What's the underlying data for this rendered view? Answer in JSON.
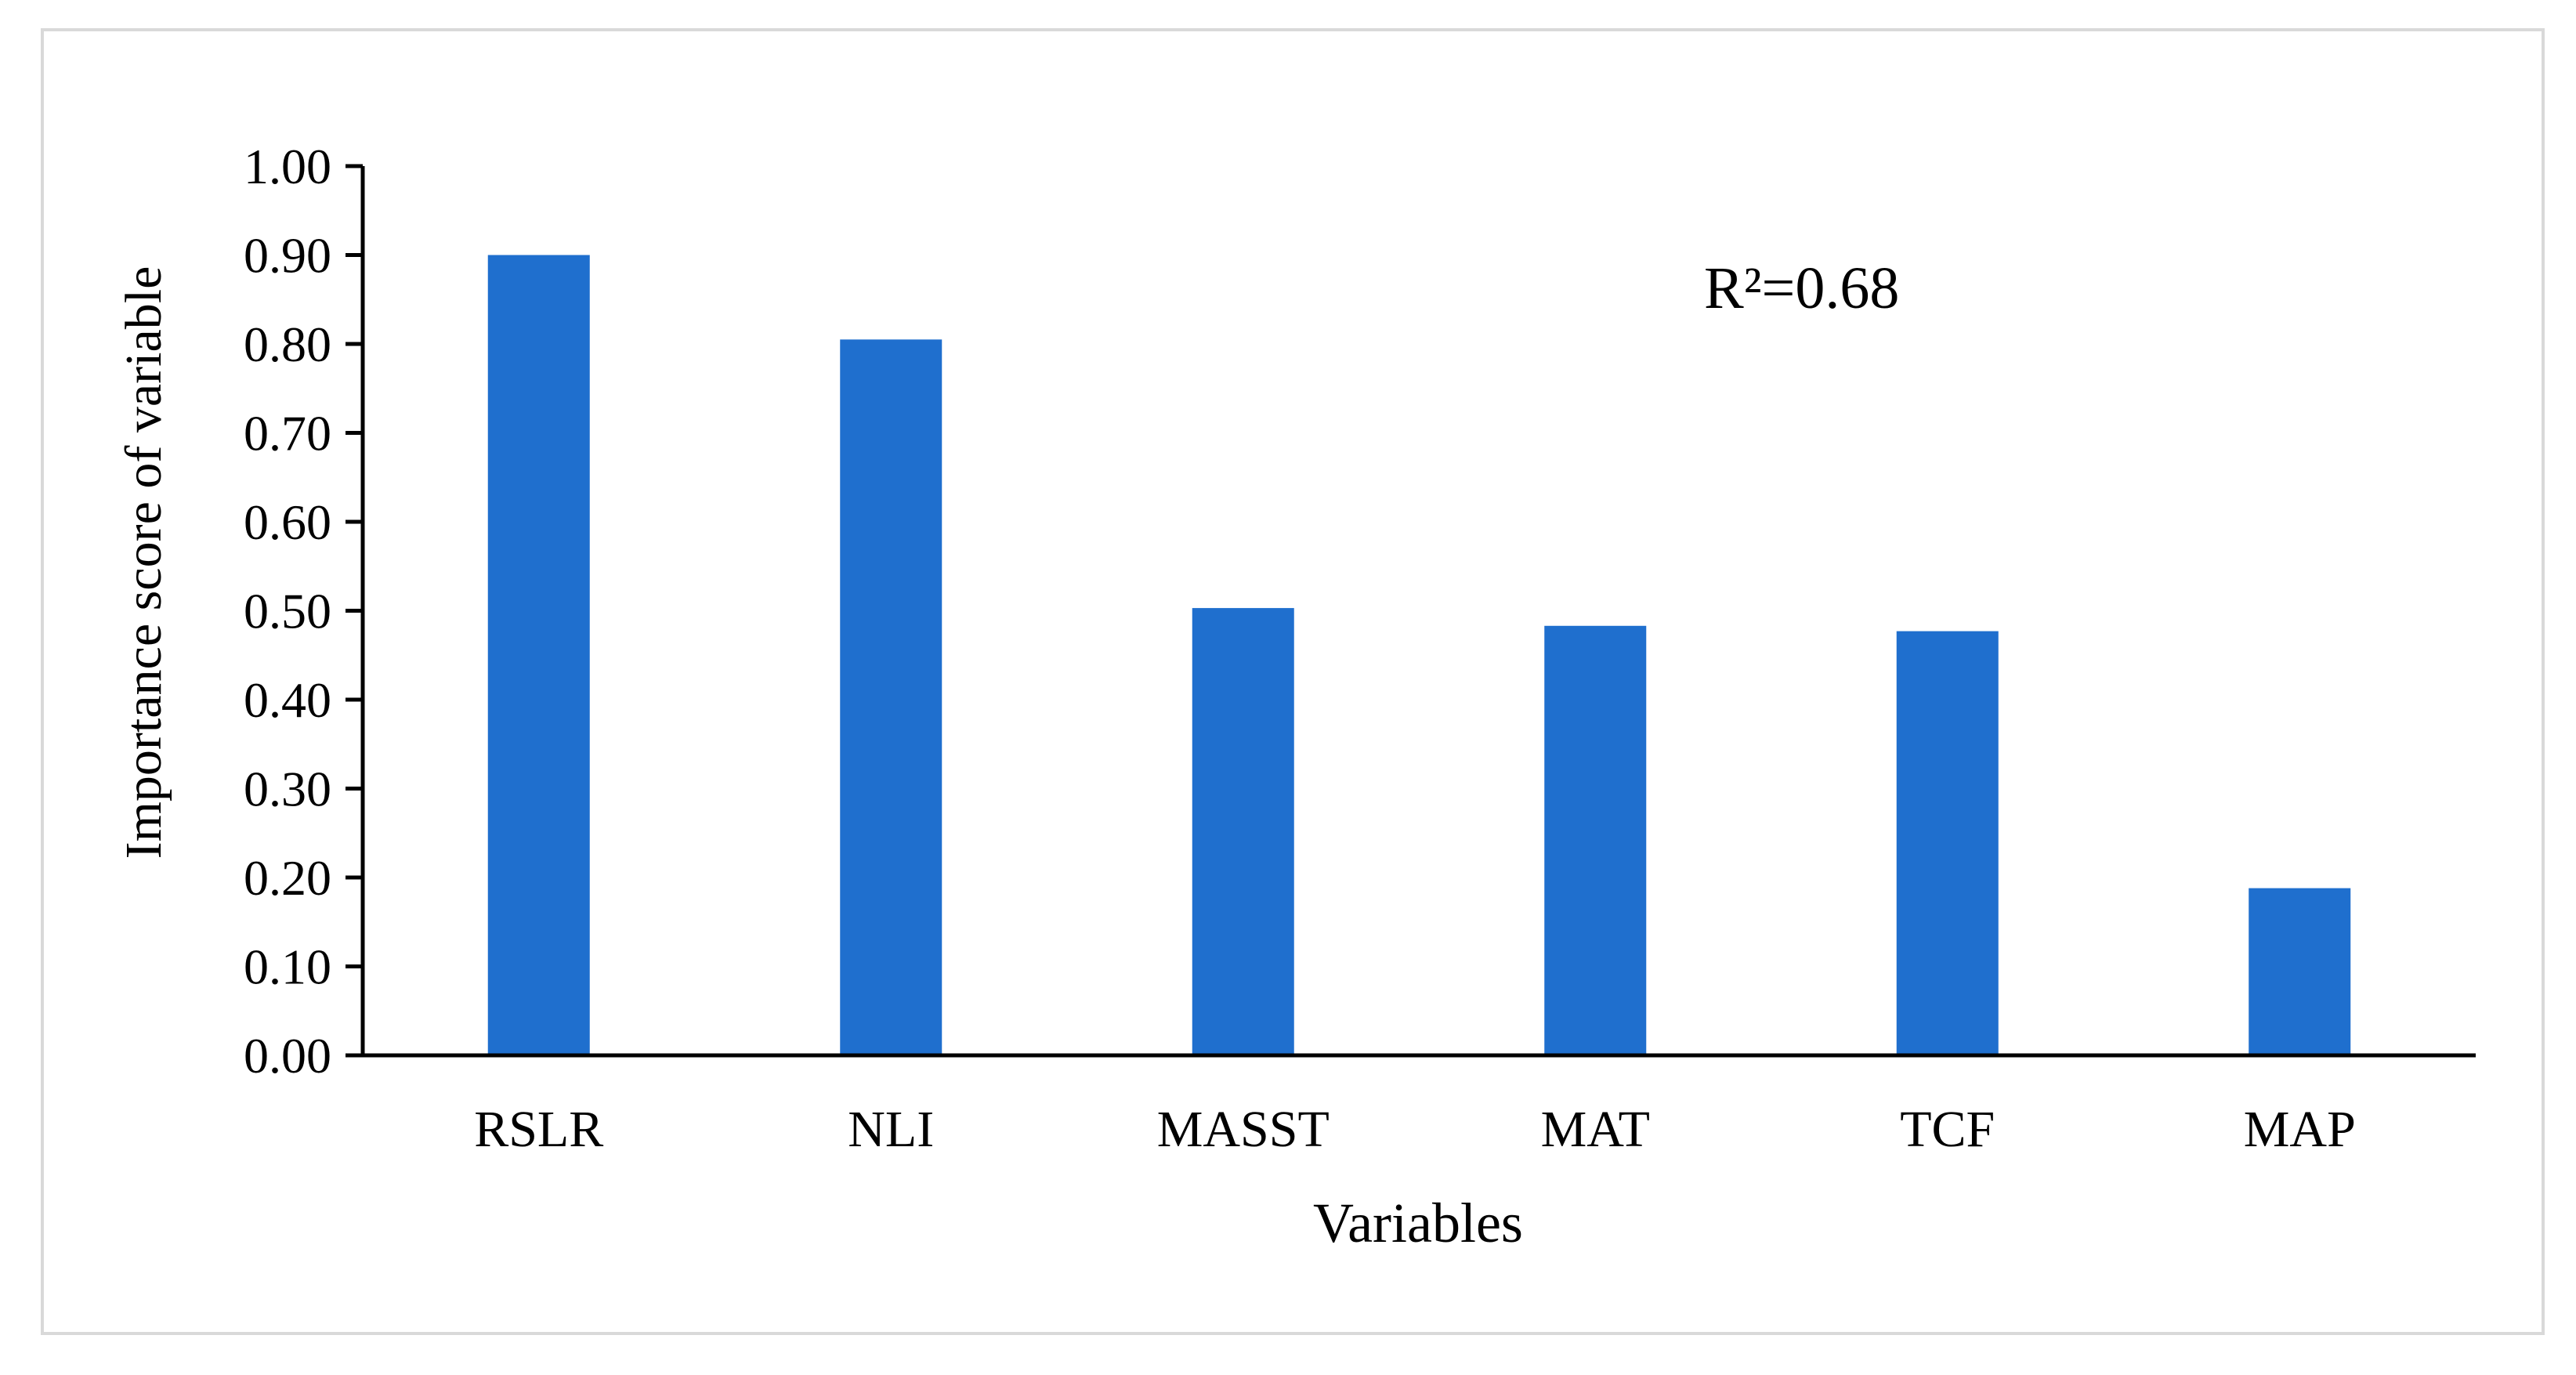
{
  "chart_data": {
    "type": "bar",
    "categories": [
      "RSLR",
      "NLI",
      "MASST",
      "MAT",
      "TCF",
      "MAP"
    ],
    "values": [
      0.9,
      0.805,
      0.503,
      0.483,
      0.477,
      0.188
    ],
    "xlabel": "Variables",
    "ylabel": "Importance score of variable",
    "ylim": [
      0,
      1
    ],
    "yticks": [
      "0.00",
      "0.10",
      "0.20",
      "0.30",
      "0.40",
      "0.50",
      "0.60",
      "0.70",
      "0.80",
      "0.90",
      "1.00"
    ],
    "annotation": "R²=0.68",
    "bar_color": "#1f6fce",
    "grid": false,
    "legend": "none"
  }
}
